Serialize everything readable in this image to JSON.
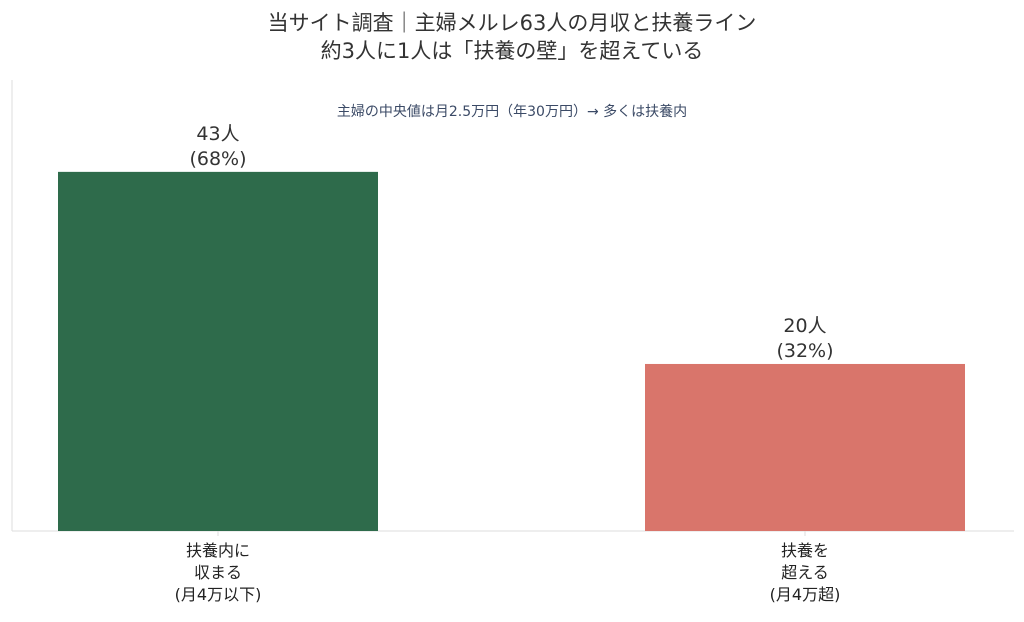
{
  "chart_data": {
    "type": "bar",
    "title_lines": [
      "当サイト調査｜主婦メルレ63人の月収と扶養ライン",
      "約3人に1人は「扶養の壁」を超えている"
    ],
    "annotation": "主婦の中央値は月2.5万円（年30万円）→ 多くは扶養内",
    "categories": [
      [
        "扶養内に",
        "収まる",
        "(月4万以下)"
      ],
      [
        "扶養を",
        "超える",
        "(月4万超)"
      ]
    ],
    "values": [
      43,
      20
    ],
    "value_labels": [
      [
        "43人",
        "(68%)"
      ],
      [
        "20人",
        "(32%)"
      ]
    ],
    "colors": [
      "#2e6b4b",
      "#d9756b"
    ],
    "ylim": [
      0,
      54
    ],
    "grid": false,
    "xlabel": "",
    "ylabel": ""
  }
}
